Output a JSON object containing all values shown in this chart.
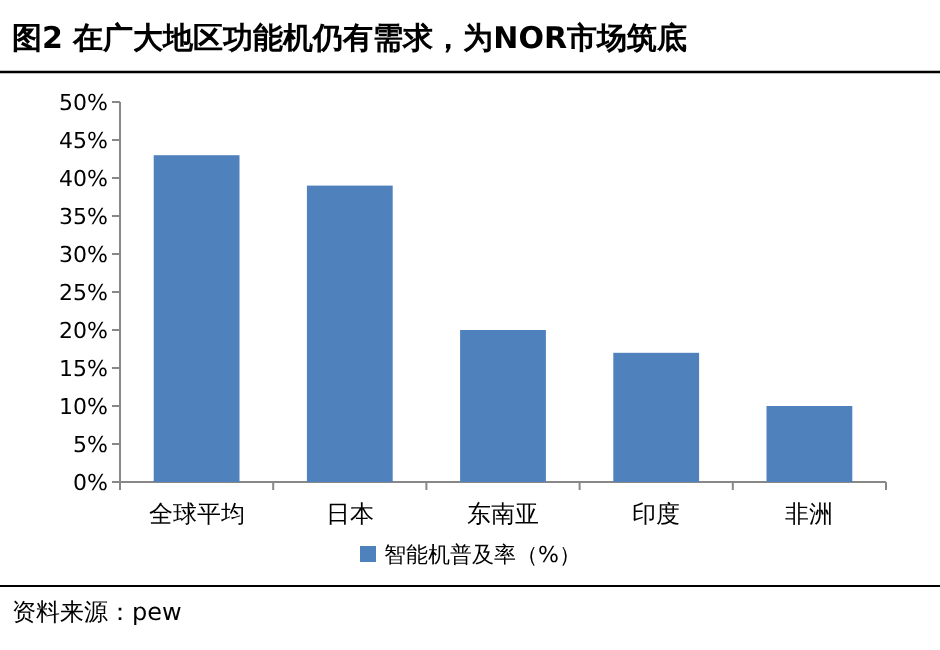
{
  "chart_data": {
    "type": "bar",
    "title": "图2 在广大地区功能机仍有需求，为NOR市场筑底",
    "categories": [
      "全球平均",
      "日本",
      "东南亚",
      "印度",
      "非洲"
    ],
    "series": [
      {
        "name": "智能机普及率（%）",
        "color": "#4f81bd",
        "values": [
          43,
          39,
          20,
          17,
          10
        ]
      }
    ],
    "ylim": [
      0,
      50
    ],
    "yticks": [
      {
        "value": 0,
        "label": "0%"
      },
      {
        "value": 5,
        "label": "5%"
      },
      {
        "value": 10,
        "label": "10%"
      },
      {
        "value": 15,
        "label": "15%"
      },
      {
        "value": 20,
        "label": "20%"
      },
      {
        "value": 25,
        "label": "25%"
      },
      {
        "value": 30,
        "label": "30%"
      },
      {
        "value": 35,
        "label": "35%"
      },
      {
        "value": 40,
        "label": "40%"
      },
      {
        "value": 45,
        "label": "45%"
      },
      {
        "value": 50,
        "label": "50%"
      }
    ],
    "grid": false,
    "legend": "bottom",
    "annotations": [
      "资料来源：pew"
    ]
  }
}
